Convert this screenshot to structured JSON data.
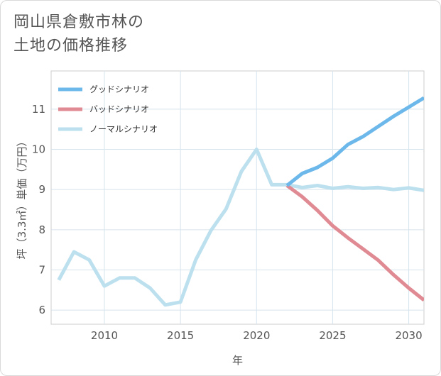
{
  "title_line1": "岡山県倉敷市林の",
  "title_line2": "土地の価格推移",
  "chart_data": {
    "type": "line",
    "xlabel": "年",
    "ylabel": "坪（3.3㎡）単価（万円）",
    "xlim": [
      2006.5,
      2031
    ],
    "ylim": [
      5.65,
      11.95
    ],
    "xticks": [
      2010,
      2015,
      2020,
      2025,
      2030
    ],
    "yticks": [
      6,
      7,
      8,
      9,
      10,
      11
    ],
    "grid": true,
    "legend_position": "top-left",
    "series": [
      {
        "name": "グッドシナリオ",
        "color": "#6cb8ea",
        "x": [
          2022,
          2023,
          2024,
          2025,
          2026,
          2027,
          2028,
          2029,
          2030,
          2031
        ],
        "values": [
          9.1,
          9.4,
          9.55,
          9.78,
          10.12,
          10.32,
          10.57,
          10.82,
          11.05,
          11.28
        ]
      },
      {
        "name": "バッドシナリオ",
        "color": "#e08a93",
        "x": [
          2022,
          2023,
          2024,
          2025,
          2026,
          2027,
          2028,
          2029,
          2030,
          2031
        ],
        "values": [
          9.1,
          8.82,
          8.48,
          8.1,
          7.8,
          7.52,
          7.24,
          6.88,
          6.55,
          6.25
        ]
      },
      {
        "name": "ノーマルシナリオ",
        "color": "#bde0ef",
        "x": [
          2007,
          2008,
          2009,
          2010,
          2011,
          2012,
          2013,
          2014,
          2015,
          2016,
          2017,
          2018,
          2019,
          2020,
          2021,
          2022,
          2023,
          2024,
          2025,
          2026,
          2027,
          2028,
          2029,
          2030,
          2031
        ],
        "values": [
          6.75,
          7.45,
          7.25,
          6.6,
          6.8,
          6.8,
          6.55,
          6.13,
          6.2,
          7.25,
          7.98,
          8.52,
          9.45,
          10.0,
          9.12,
          9.12,
          9.05,
          9.1,
          9.03,
          9.07,
          9.03,
          9.05,
          9.0,
          9.04,
          8.98
        ]
      }
    ]
  }
}
